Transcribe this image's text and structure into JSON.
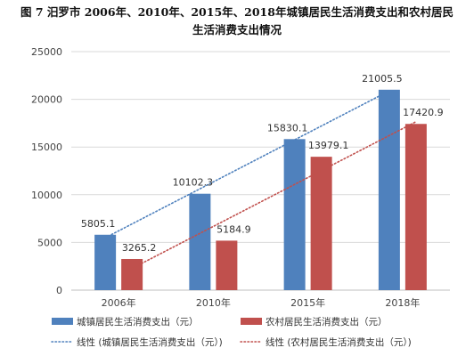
{
  "chart_data": {
    "type": "bar",
    "title_line1": "图 7 汨罗市 2006年、2010年、2015年、2018年城镇居民生活消费支出和农村居民",
    "title_line2": "生活消费支出情况",
    "categories": [
      "2006年",
      "2010年",
      "2015年",
      "2018年"
    ],
    "series": [
      {
        "name": "城镇居民生活消费支出（元）",
        "values": [
          5805.1,
          10102.3,
          15830.1,
          21005.5
        ],
        "color": "#4f81bd"
      },
      {
        "name": "农村居民生活消费支出（元）",
        "values": [
          3265.2,
          5184.9,
          13979.1,
          17420.9
        ],
        "color": "#c0504d"
      }
    ],
    "data_labels": [
      [
        "5805.1",
        "10102.3",
        "15830.1",
        "21005.5"
      ],
      [
        "3265.2",
        "5184.9",
        "13979.1",
        "17420.9"
      ]
    ],
    "trendlines": [
      {
        "name": "线性 (城镇居民生活消费支出（元）)",
        "series": 0,
        "color": "#4f81bd",
        "style": "dotted"
      },
      {
        "name": "线性 (农村居民生活消费支出（元）)",
        "series": 1,
        "color": "#c0504d",
        "style": "dotted"
      }
    ],
    "ylim": [
      0,
      25000
    ],
    "yticks": [
      0,
      5000,
      10000,
      15000,
      20000,
      25000
    ],
    "ytick_labels": [
      "0",
      "5000",
      "10000",
      "15000",
      "20000",
      "25000"
    ],
    "grid": true,
    "legend": "bottom"
  }
}
